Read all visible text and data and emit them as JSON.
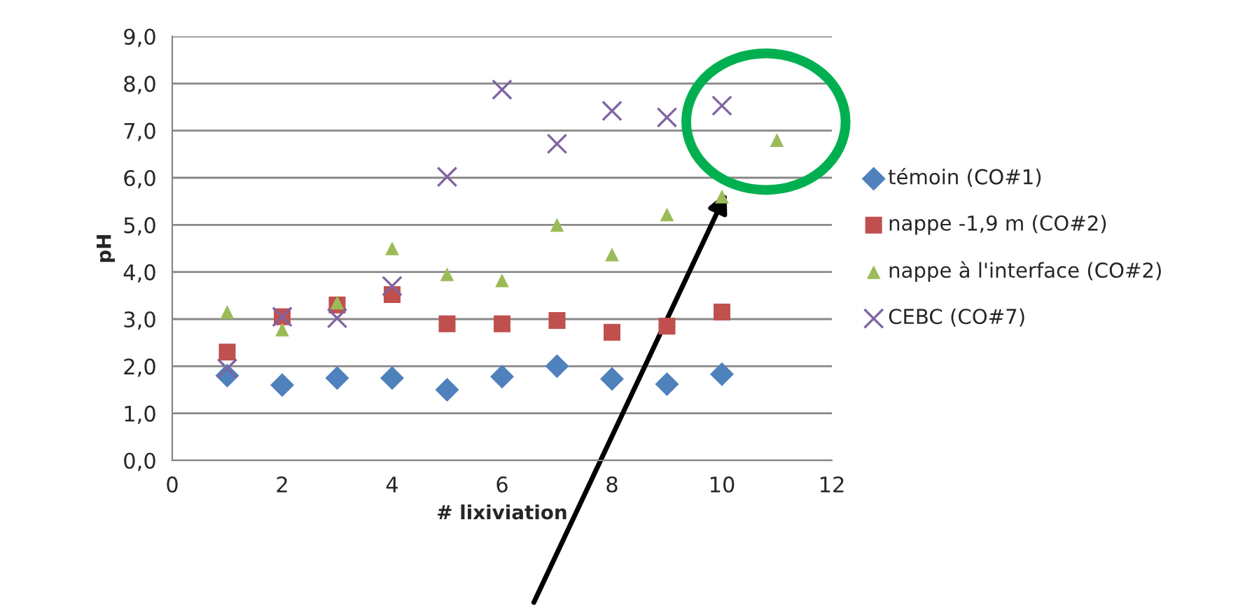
{
  "chart_data": {
    "type": "scatter",
    "xlabel": "# lixiviation",
    "ylabel": "pH",
    "xlim": [
      0,
      12
    ],
    "xticks": [
      0,
      2,
      4,
      6,
      8,
      10,
      12
    ],
    "ylim": [
      0,
      9
    ],
    "yticks": [
      {
        "value": 0,
        "label": "0,0"
      },
      {
        "value": 1,
        "label": "1,0"
      },
      {
        "value": 2,
        "label": "2,0"
      },
      {
        "value": 3,
        "label": "3,0"
      },
      {
        "value": 4,
        "label": "4,0"
      },
      {
        "value": 5,
        "label": "5,0"
      },
      {
        "value": 6,
        "label": "6,0"
      },
      {
        "value": 7,
        "label": "7,0"
      },
      {
        "value": 8,
        "label": "8,0"
      },
      {
        "value": 9,
        "label": "9,0"
      }
    ],
    "grid": "y",
    "legend": "right",
    "series": [
      {
        "name": "témoin (CO#1)",
        "color": "#4f81bd",
        "marker": "diamond",
        "x": [
          1,
          2,
          3,
          4,
          5,
          6,
          7,
          8,
          9,
          10
        ],
        "values": [
          1.8,
          1.6,
          1.75,
          1.75,
          1.5,
          1.78,
          2.0,
          1.73,
          1.62,
          1.83
        ]
      },
      {
        "name": "nappe -1,9 m (CO#2)",
        "color": "#c0504d",
        "marker": "square",
        "x": [
          1,
          2,
          3,
          4,
          5,
          6,
          7,
          8,
          9,
          10
        ],
        "values": [
          2.3,
          3.05,
          3.3,
          3.52,
          2.9,
          2.9,
          2.97,
          2.72,
          2.85,
          3.15
        ]
      },
      {
        "name": "nappe à l'interface (CO#2)",
        "color": "#9bbb59",
        "marker": "triangle",
        "x": [
          1,
          2,
          3,
          4,
          5,
          6,
          7,
          8,
          9,
          10,
          11
        ],
        "values": [
          3.15,
          2.78,
          3.35,
          4.5,
          3.95,
          3.82,
          5.0,
          4.37,
          5.22,
          5.6,
          6.8
        ]
      },
      {
        "name": "CEBC (CO#7)",
        "color": "#8064a2",
        "marker": "cross",
        "x": [
          1,
          2,
          3,
          4,
          5,
          6,
          7,
          8,
          9,
          10
        ],
        "values": [
          1.95,
          3.05,
          3.02,
          3.7,
          6.02,
          7.87,
          6.72,
          7.42,
          7.28,
          7.53
        ]
      }
    ]
  }
}
